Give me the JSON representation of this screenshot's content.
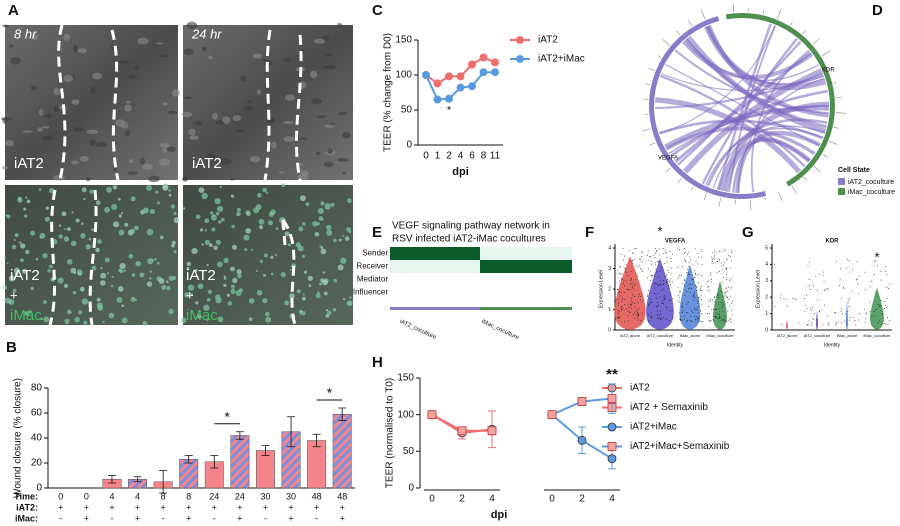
{
  "panels": {
    "A": {
      "label": "A",
      "time_8": "8 hr",
      "time_24": "24 hr",
      "top_left": "iAT2",
      "top_right": "iAT2",
      "bottom_left": [
        "iAT2",
        "+",
        "iMac"
      ],
      "bottom_right": [
        "iAT2",
        "+",
        "iMac"
      ]
    },
    "D": {
      "label": "D",
      "genes": [
        "KDR",
        "VEGFA"
      ],
      "legend_title": "Cell State",
      "legend": [
        {
          "name": "iAT2_coculture",
          "color": "#8a7cc8"
        },
        {
          "name": "iMac_coculture",
          "color": "#4f8f4f"
        }
      ]
    },
    "E": {
      "label": "E",
      "title": [
        "VEGF signaling pathway network in",
        "RSV infected iAT2-iMac cocultures"
      ],
      "rows": [
        "Sender",
        "Receiver",
        "Mediator",
        "Influencer"
      ],
      "columns": [
        "iAT2_coculture",
        "iMac_coculture"
      ]
    },
    "F": {
      "label": "F",
      "title": "VEGFA",
      "ylabel": "Expression Level",
      "xlabel": "Identity",
      "groups": [
        "iAT2_alone",
        "iAT2_coculture",
        "iMac_alone",
        "iMac_coculture"
      ],
      "yticks": [
        0,
        1,
        2,
        3,
        4
      ],
      "annotation": "*"
    },
    "G": {
      "label": "G",
      "title": "KDR",
      "ylabel": "Expression Level",
      "xlabel": "Identity",
      "groups": [
        "iAT2_alone",
        "iAT2_coculture",
        "iMac_alone",
        "iMac_coculture"
      ],
      "yticks": [
        0,
        1,
        2,
        3,
        4,
        5
      ],
      "annotation": "*"
    }
  },
  "chart_data": [
    {
      "type": "bar",
      "label": "B",
      "ylabel": "Wound closure (% closure)",
      "row_labels": [
        "Time:",
        "iAT2:",
        "iMac:"
      ],
      "categories": [
        "0",
        "0",
        "4",
        "4",
        "8",
        "8",
        "24",
        "24",
        "30",
        "30",
        "48",
        "48"
      ],
      "iat2": [
        "+",
        "+",
        "+",
        "+",
        "+",
        "+",
        "+",
        "+",
        "+",
        "+",
        "+",
        "+"
      ],
      "imac": [
        "-",
        "+",
        "-",
        "+",
        "-",
        "+",
        "-",
        "+",
        "-",
        "+",
        "-",
        "+"
      ],
      "values": [
        0,
        0,
        7,
        7,
        5,
        23,
        21,
        42,
        30,
        45,
        38,
        59
      ],
      "errors": [
        0,
        0,
        3,
        2,
        9,
        3,
        5,
        3,
        4,
        12,
        5,
        5
      ],
      "color": "#f4858a",
      "stripe_color": "#7b8fe0",
      "striped": [
        false,
        true,
        false,
        true,
        false,
        true,
        false,
        true,
        false,
        true,
        false,
        true
      ],
      "ylim": [
        0,
        80
      ],
      "yticks": [
        0,
        20,
        40,
        60,
        80
      ],
      "annotations": [
        "*",
        "*"
      ]
    },
    {
      "type": "line",
      "label": "C",
      "ylabel": "TEER (% change from D0)",
      "xlabel": "dpi",
      "categories": [
        "0",
        "1",
        "2",
        "4",
        "6",
        "8",
        "11"
      ],
      "series": [
        {
          "name": "iAT2",
          "color": "#f06e6e",
          "marker": "circle",
          "values": [
            100,
            88,
            98,
            98,
            115,
            125,
            118
          ]
        },
        {
          "name": "iAT2+iMac",
          "color": "#5a9be0",
          "marker": "circle",
          "values": [
            100,
            65,
            66,
            82,
            84,
            104,
            104
          ]
        }
      ],
      "ylim": [
        0,
        150
      ],
      "yticks": [
        0,
        50,
        100,
        150
      ],
      "annotation": "*"
    },
    {
      "type": "line",
      "label": "H",
      "ylabel": "TEER (normalised to T0)",
      "xlabel": "dpi",
      "categories": [
        "0",
        "2",
        "4",
        "0",
        "2",
        "4"
      ],
      "series": [
        {
          "name": "iAT2",
          "color": "#f06e6e",
          "marker": "circle",
          "marker_color": "#f4a3a3",
          "values": [
            100,
            75,
            80,
            null,
            null,
            null
          ],
          "errors": [
            0,
            8,
            25,
            null,
            null,
            null
          ]
        },
        {
          "name": "iAT2 + Semaxinib",
          "color": "#f06e6e",
          "marker": "square",
          "marker_color": "#f4a3a3",
          "values": [
            100,
            78,
            78,
            null,
            null,
            null
          ],
          "errors": [
            0,
            5,
            5,
            null,
            null,
            null
          ]
        },
        {
          "name": "iAT2+iMac",
          "color": "#5a9be0",
          "marker": "circle",
          "marker_color": "#5a9be0",
          "values": [
            null,
            null,
            null,
            100,
            65,
            40
          ],
          "errors": [
            null,
            null,
            null,
            0,
            18,
            14
          ]
        },
        {
          "name": "iAT2+iMac+Semaxinib",
          "color": "#5a9be0",
          "marker": "square",
          "marker_color": "#f4a3a3",
          "values": [
            null,
            null,
            null,
            100,
            118,
            122
          ],
          "errors": [
            null,
            null,
            null,
            0,
            5,
            20
          ]
        }
      ],
      "ylim": [
        0,
        150
      ],
      "yticks": [
        0,
        50,
        100,
        150
      ],
      "annotation": "**"
    }
  ]
}
